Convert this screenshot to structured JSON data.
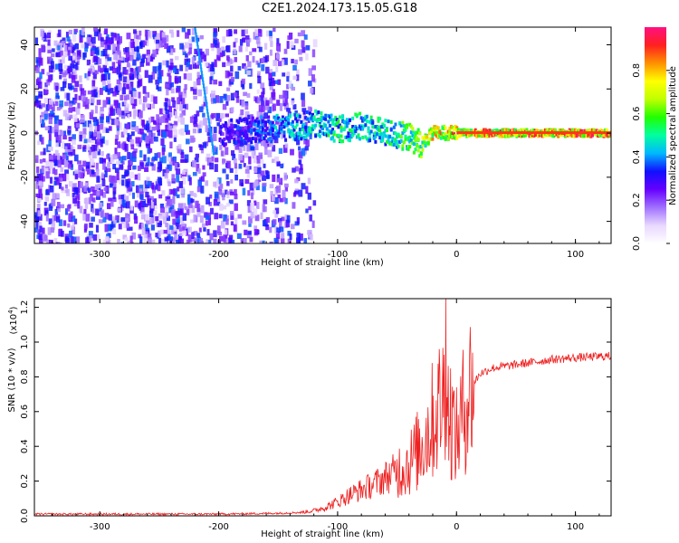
{
  "figure_title": "C2E1.2024.173.15.05.G18",
  "chart_data": [
    {
      "type": "heatmap",
      "title": "",
      "xlabel": "Height of straight line (km)",
      "ylabel": "Frequency (Hz)",
      "xlim": [
        -355,
        130
      ],
      "ylim": [
        -50,
        48
      ],
      "x_ticks": [
        -300,
        -200,
        -100,
        0,
        100
      ],
      "y_ticks": [
        -40,
        -20,
        0,
        20,
        40
      ],
      "colorbar": {
        "label": "Normalized spectral amplitude",
        "range": [
          0,
          1
        ],
        "ticks": [
          "0.0",
          "0.2",
          "0.4",
          "0.6",
          "0.8"
        ],
        "colors": [
          "#ffffff",
          "#e8d8ff",
          "#a070ff",
          "#6600ff",
          "#1010ff",
          "#00b8ff",
          "#00ffa0",
          "#20ff00",
          "#c0ff00",
          "#ffff00",
          "#ff9000",
          "#ff2020",
          "#ff1080"
        ]
      },
      "description_series": [
        {
          "name": "diffuse noise region",
          "x_range": [
            -355,
            -120
          ],
          "freq_range": [
            -50,
            48
          ]
        },
        {
          "name": "tone line",
          "x": [
            -200,
            -150,
            -120,
            -100,
            -80,
            -60,
            -40,
            -30,
            -20,
            0,
            50,
            100,
            130
          ],
          "freq_center": [
            0,
            2,
            4,
            2,
            3,
            0,
            -2,
            -5,
            0,
            0,
            0,
            0,
            0
          ],
          "amplitude": [
            0.3,
            0.45,
            0.5,
            0.55,
            0.5,
            0.55,
            0.6,
            0.7,
            0.8,
            0.85,
            0.9,
            0.9,
            0.9
          ]
        }
      ]
    },
    {
      "type": "line",
      "title": "",
      "xlabel": "Height of straight line (km)",
      "ylabel": "SNR (10 * v/v)",
      "y_multiplier": "(x10",
      "y_multiplier_exp": "4",
      "y_multiplier_close": ")",
      "xlim": [
        -355,
        130
      ],
      "ylim": [
        0,
        1.25
      ],
      "x_ticks": [
        -300,
        -200,
        -100,
        0,
        100
      ],
      "y_ticks": [
        "0.0",
        "0.2",
        "0.4",
        "0.6",
        "0.8",
        "1.0",
        "1.2"
      ],
      "series": [
        {
          "name": "SNR",
          "color": "#ee2020",
          "x": [
            -355,
            -300,
            -250,
            -200,
            -150,
            -130,
            -120,
            -110,
            -100,
            -90,
            -80,
            -70,
            -60,
            -50,
            -40,
            -30,
            -20,
            -10,
            0,
            10,
            20,
            30,
            40,
            60,
            80,
            100,
            130
          ],
          "y": [
            0.01,
            0.01,
            0.01,
            0.01,
            0.015,
            0.02,
            0.03,
            0.05,
            0.08,
            0.12,
            0.15,
            0.18,
            0.22,
            0.26,
            0.3,
            0.4,
            0.55,
            0.7,
            0.45,
            0.72,
            0.82,
            0.85,
            0.86,
            0.88,
            0.9,
            0.91,
            0.92
          ]
        }
      ],
      "peak": {
        "x": -9,
        "y": 1.25
      }
    }
  ]
}
